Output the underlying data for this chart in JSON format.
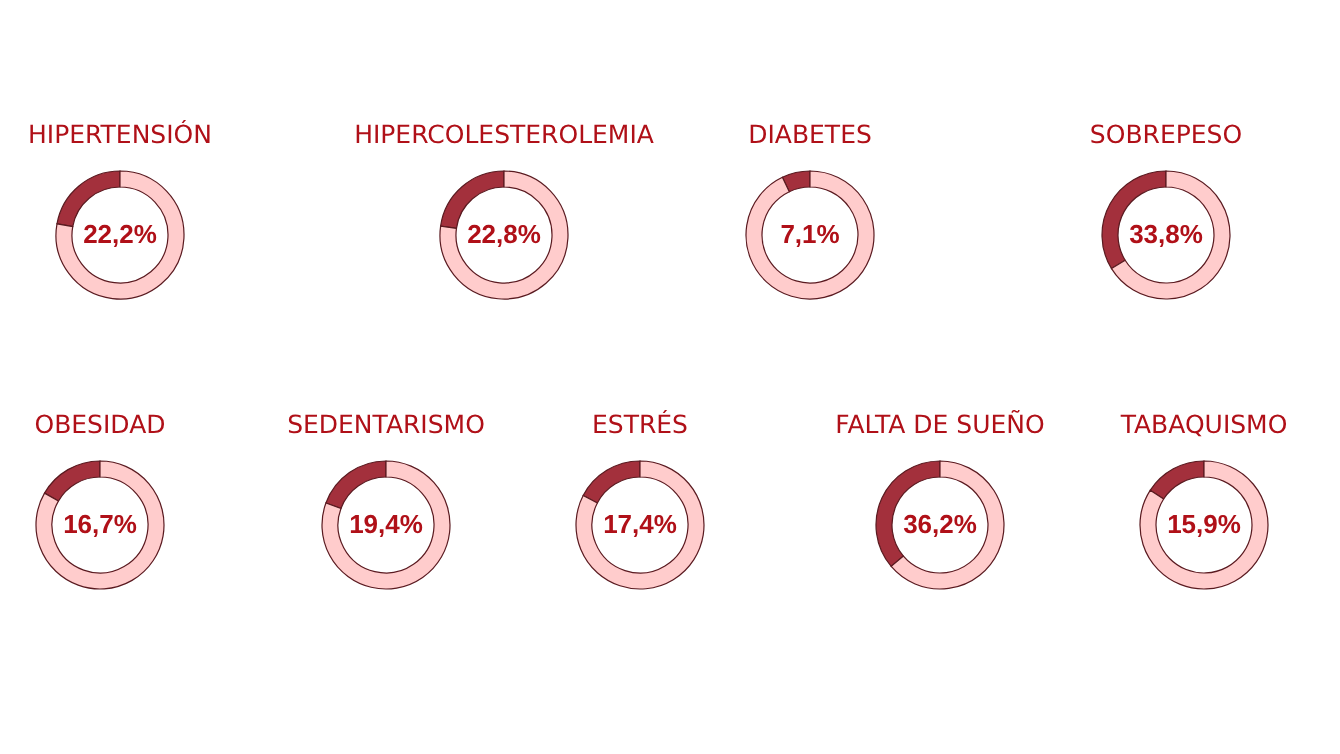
{
  "chart_data": [
    {
      "type": "donut",
      "title": "HIPERTENSIÓN",
      "categories": [
        null,
        null
      ],
      "values": [
        22.2,
        77.8
      ],
      "colors": [
        "#a3303c",
        "#ffcccc"
      ],
      "value_labels": [
        "22,2%",
        null
      ]
    },
    {
      "type": "donut",
      "title": "HIPERCOLESTEROLEMIA",
      "categories": [
        null,
        null
      ],
      "values": [
        22.8,
        77.2
      ],
      "colors": [
        "#a3303c",
        "#ffcccc"
      ],
      "value_labels": [
        "22,8%",
        null
      ]
    },
    {
      "type": "donut",
      "title": "DIABETES",
      "categories": [
        null,
        null
      ],
      "values": [
        7.1,
        92.9
      ],
      "colors": [
        "#a3303c",
        "#ffcccc"
      ],
      "value_labels": [
        "7,1%",
        null
      ]
    },
    {
      "type": "donut",
      "title": "SOBREPESO",
      "categories": [
        null,
        null
      ],
      "values": [
        33.8,
        66.2
      ],
      "colors": [
        "#a3303c",
        "#ffcccc"
      ],
      "value_labels": [
        "33,8%",
        null
      ]
    },
    {
      "type": "donut",
      "title": "OBESIDAD",
      "categories": [
        null,
        null
      ],
      "values": [
        16.7,
        83.3
      ],
      "colors": [
        "#a3303c",
        "#ffcccc"
      ],
      "value_labels": [
        "16,7%",
        null
      ]
    },
    {
      "type": "donut",
      "title": "SEDENTARISMO",
      "categories": [
        null,
        null
      ],
      "values": [
        19.4,
        80.6
      ],
      "colors": [
        "#a3303c",
        "#ffcccc"
      ],
      "value_labels": [
        "19,4%",
        null
      ]
    },
    {
      "type": "donut",
      "title": "ESTRÉS",
      "categories": [
        null,
        null
      ],
      "values": [
        17.4,
        82.6
      ],
      "colors": [
        "#a3303c",
        "#ffcccc"
      ],
      "value_labels": [
        "17,4%",
        null
      ]
    },
    {
      "type": "donut",
      "title": "FALTA DE SUEÑO",
      "categories": [
        null,
        null
      ],
      "values": [
        36.2,
        63.8
      ],
      "colors": [
        "#a3303c",
        "#ffcccc"
      ],
      "value_labels": [
        "36,2%",
        null
      ]
    },
    {
      "type": "donut",
      "title": "TABAQUISMO",
      "categories": [
        null,
        null
      ],
      "values": [
        15.9,
        84.1
      ],
      "colors": [
        "#a3303c",
        "#ffcccc"
      ],
      "value_labels": [
        "15,9%",
        null
      ]
    }
  ]
}
